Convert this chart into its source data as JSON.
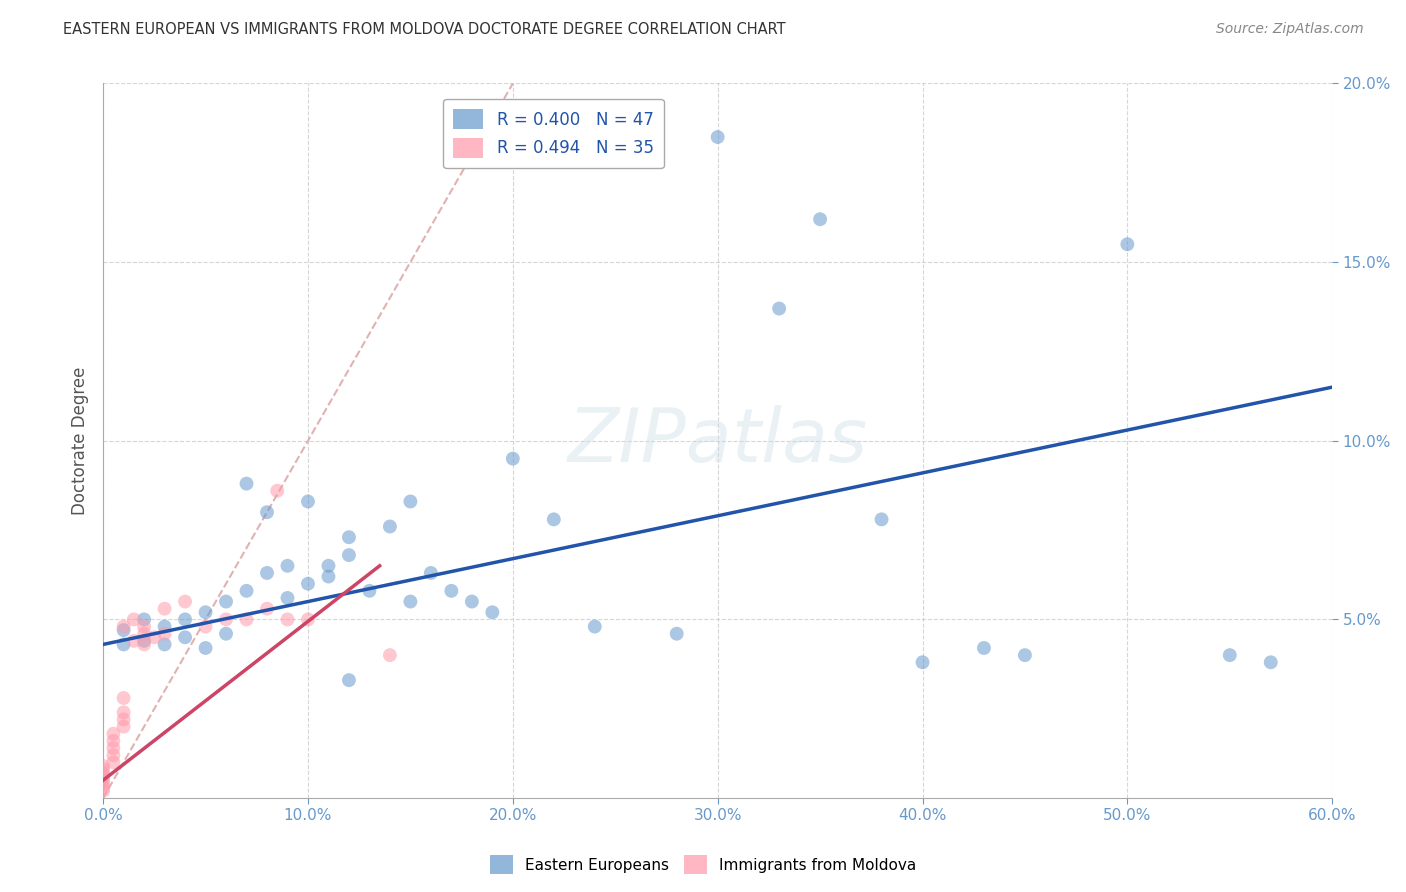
{
  "title": "EASTERN EUROPEAN VS IMMIGRANTS FROM MOLDOVA DOCTORATE DEGREE CORRELATION CHART",
  "source": "Source: ZipAtlas.com",
  "ylabel": "Doctorate Degree",
  "xlabel": "",
  "xlim": [
    0.0,
    0.6
  ],
  "ylim": [
    0.0,
    0.2
  ],
  "xtick_vals": [
    0.0,
    0.1,
    0.2,
    0.3,
    0.4,
    0.5,
    0.6
  ],
  "ytick_vals": [
    0.05,
    0.1,
    0.15,
    0.2
  ],
  "legend1_label": "R = 0.400   N = 47",
  "legend2_label": "R = 0.494   N = 35",
  "blue_color": "#6699CC",
  "pink_color": "#FF99AA",
  "blue_line_color": "#2255AA",
  "pink_line_color": "#CC4466",
  "dashed_line_color": "#DDAAAA",
  "background_color": "#FFFFFF",
  "grid_color": "#CCCCCC",
  "watermark": "ZIPatlas",
  "blue_scatter_x": [
    0.01,
    0.01,
    0.02,
    0.02,
    0.03,
    0.03,
    0.04,
    0.04,
    0.05,
    0.05,
    0.06,
    0.06,
    0.07,
    0.07,
    0.08,
    0.08,
    0.09,
    0.09,
    0.1,
    0.1,
    0.11,
    0.11,
    0.12,
    0.12,
    0.13,
    0.14,
    0.15,
    0.15,
    0.16,
    0.17,
    0.18,
    0.19,
    0.2,
    0.22,
    0.24,
    0.28,
    0.3,
    0.33,
    0.35,
    0.38,
    0.4,
    0.43,
    0.45,
    0.5,
    0.55,
    0.57,
    0.12
  ],
  "blue_scatter_y": [
    0.047,
    0.043,
    0.05,
    0.044,
    0.048,
    0.043,
    0.05,
    0.045,
    0.052,
    0.042,
    0.055,
    0.046,
    0.058,
    0.088,
    0.063,
    0.08,
    0.065,
    0.056,
    0.06,
    0.083,
    0.065,
    0.062,
    0.068,
    0.073,
    0.058,
    0.076,
    0.055,
    0.083,
    0.063,
    0.058,
    0.055,
    0.052,
    0.095,
    0.078,
    0.048,
    0.046,
    0.185,
    0.137,
    0.162,
    0.078,
    0.038,
    0.042,
    0.04,
    0.155,
    0.04,
    0.038,
    0.033
  ],
  "pink_scatter_x": [
    0.0,
    0.0,
    0.0,
    0.0,
    0.0,
    0.0,
    0.0,
    0.0,
    0.005,
    0.005,
    0.005,
    0.005,
    0.005,
    0.01,
    0.01,
    0.01,
    0.01,
    0.01,
    0.015,
    0.015,
    0.02,
    0.02,
    0.02,
    0.025,
    0.03,
    0.03,
    0.04,
    0.05,
    0.06,
    0.07,
    0.08,
    0.085,
    0.09,
    0.1,
    0.14
  ],
  "pink_scatter_y": [
    0.002,
    0.003,
    0.004,
    0.005,
    0.006,
    0.007,
    0.008,
    0.009,
    0.01,
    0.012,
    0.014,
    0.016,
    0.018,
    0.02,
    0.022,
    0.024,
    0.028,
    0.048,
    0.044,
    0.05,
    0.043,
    0.046,
    0.048,
    0.045,
    0.046,
    0.053,
    0.055,
    0.048,
    0.05,
    0.05,
    0.053,
    0.086,
    0.05,
    0.05,
    0.04
  ],
  "blue_trendline_x": [
    0.0,
    0.6
  ],
  "blue_trendline_y": [
    0.043,
    0.115
  ],
  "pink_trendline_x": [
    0.0,
    0.135
  ],
  "pink_trendline_y": [
    0.005,
    0.065
  ],
  "diag_line_x": [
    0.0,
    0.2
  ],
  "diag_line_y": [
    0.0,
    0.2
  ]
}
